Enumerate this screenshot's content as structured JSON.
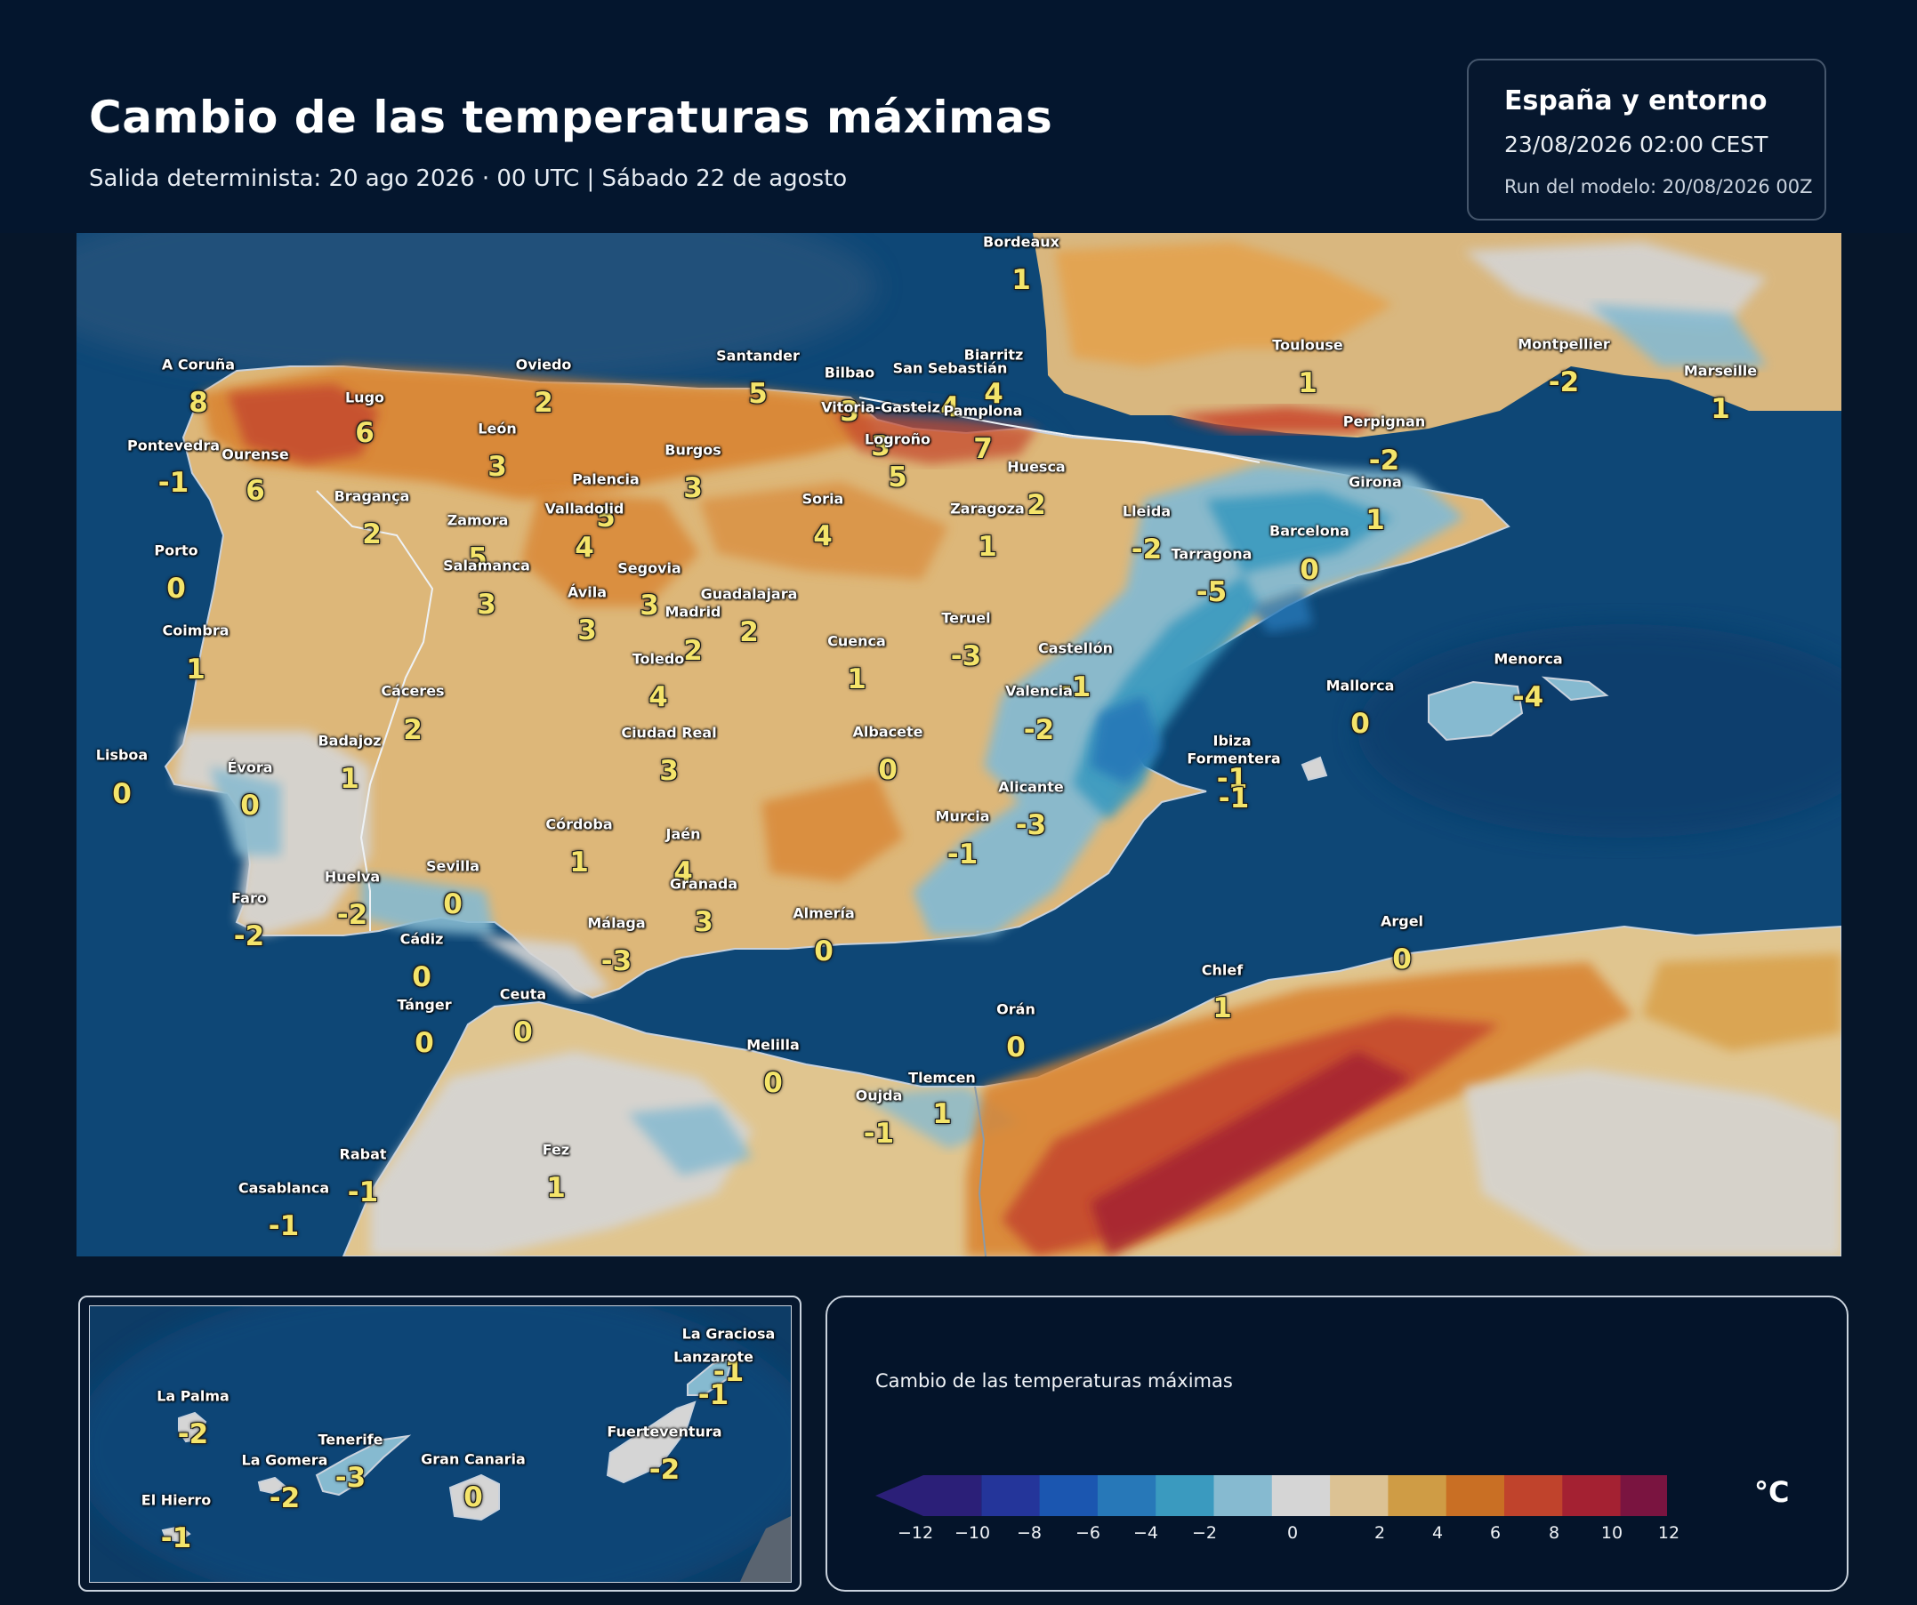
{
  "header": {
    "title": "Cambio de las temperaturas máximas",
    "subtitle": "Salida determinista: 20 ago 2026 · 00 UTC  |  Sábado 22 de agosto"
  },
  "info": {
    "region": "España y entorno",
    "datetime": "23/08/2026  02:00 CEST",
    "run": "Run del modelo: 20/08/2026 00Z"
  },
  "legend": {
    "title": "Cambio de las temperaturas máximas",
    "unit": "°C",
    "ticks": [
      "−12",
      "−10",
      "−8",
      "−6",
      "−4",
      "−2",
      "0",
      "2",
      "4",
      "6",
      "8",
      "10",
      "12"
    ],
    "colors": [
      "#2b1f78",
      "#24359a",
      "#1b56b0",
      "#2778b8",
      "#3a9abf",
      "#86bad0",
      "#d5d5d5",
      "#dcc294",
      "#cf9c45",
      "#c96f24",
      "#c0432c",
      "#a42132",
      "#7a1440"
    ]
  },
  "map": {
    "sea_color": "#0e4776",
    "cities": [
      {
        "name": "Bordeaux",
        "value": "1"
      },
      {
        "name": "A Coruña",
        "value": "8"
      },
      {
        "name": "Lugo",
        "value": "6"
      },
      {
        "name": "Oviedo",
        "value": "2"
      },
      {
        "name": "Santander",
        "value": "5"
      },
      {
        "name": "Bilbao",
        "value": "3"
      },
      {
        "name": "Biarritz",
        "value": "4"
      },
      {
        "name": "San Sebastián",
        "value": "4"
      },
      {
        "name": "Vitoria-Gasteiz",
        "value": "3"
      },
      {
        "name": "Pamplona",
        "value": "7"
      },
      {
        "name": "Logroño",
        "value": "5"
      },
      {
        "name": "Toulouse",
        "value": "1"
      },
      {
        "name": "Montpellier",
        "value": "-2"
      },
      {
        "name": "Marseille",
        "value": "1"
      },
      {
        "name": "Pontevedra",
        "value": "-1"
      },
      {
        "name": "Ourense",
        "value": "6"
      },
      {
        "name": "León",
        "value": "3"
      },
      {
        "name": "Burgos",
        "value": "3"
      },
      {
        "name": "Palencia",
        "value": "5"
      },
      {
        "name": "Soria",
        "value": "4"
      },
      {
        "name": "Huesca",
        "value": "2"
      },
      {
        "name": "Perpignan",
        "value": "-2"
      },
      {
        "name": "Girona",
        "value": "1"
      },
      {
        "name": "Bragança",
        "value": "2"
      },
      {
        "name": "Valladolid",
        "value": "4"
      },
      {
        "name": "Zaragoza",
        "value": "1"
      },
      {
        "name": "Lleida",
        "value": "-2"
      },
      {
        "name": "Barcelona",
        "value": "0"
      },
      {
        "name": "Zamora",
        "value": "5"
      },
      {
        "name": "Tarragona",
        "value": "-5"
      },
      {
        "name": "Porto",
        "value": "0"
      },
      {
        "name": "Salamanca",
        "value": "3"
      },
      {
        "name": "Segovia",
        "value": "3"
      },
      {
        "name": "Ávila",
        "value": "3"
      },
      {
        "name": "Guadalajara",
        "value": "2"
      },
      {
        "name": "Madrid",
        "value": "2"
      },
      {
        "name": "Teruel",
        "value": "-3"
      },
      {
        "name": "Coimbra",
        "value": "1"
      },
      {
        "name": "Cuenca",
        "value": "1"
      },
      {
        "name": "Castellón",
        "value": "-1"
      },
      {
        "name": "Toledo",
        "value": "4"
      },
      {
        "name": "Valencia",
        "value": "-2"
      },
      {
        "name": "Cáceres",
        "value": "2"
      },
      {
        "name": "Menorca",
        "value": "-4"
      },
      {
        "name": "Mallorca",
        "value": "0"
      },
      {
        "name": "Badajoz",
        "value": "1"
      },
      {
        "name": "Ciudad Real",
        "value": "3"
      },
      {
        "name": "Albacete",
        "value": "0"
      },
      {
        "name": "Ibiza",
        "value": "-1"
      },
      {
        "name": "Formentera",
        "value": "-1"
      },
      {
        "name": "Lisboa",
        "value": "0"
      },
      {
        "name": "Évora",
        "value": "0"
      },
      {
        "name": "Alicante",
        "value": "-3"
      },
      {
        "name": "Murcia",
        "value": "-1"
      },
      {
        "name": "Córdoba",
        "value": "1"
      },
      {
        "name": "Jaén",
        "value": "4"
      },
      {
        "name": "Huelva",
        "value": "-2"
      },
      {
        "name": "Sevilla",
        "value": "0"
      },
      {
        "name": "Granada",
        "value": "3"
      },
      {
        "name": "Faro",
        "value": "-2"
      },
      {
        "name": "Almería",
        "value": "0"
      },
      {
        "name": "Málaga",
        "value": "-3"
      },
      {
        "name": "Argel",
        "value": "0"
      },
      {
        "name": "Cádiz",
        "value": "0"
      },
      {
        "name": "Chlef",
        "value": "1"
      },
      {
        "name": "Tánger",
        "value": "0"
      },
      {
        "name": "Ceuta",
        "value": "0"
      },
      {
        "name": "Orán",
        "value": "0"
      },
      {
        "name": "Melilla",
        "value": "0"
      },
      {
        "name": "Tlemcen",
        "value": "1"
      },
      {
        "name": "Oujda",
        "value": "-1"
      },
      {
        "name": "Fez",
        "value": "1"
      },
      {
        "name": "Rabat",
        "value": "-1"
      },
      {
        "name": "Casablanca",
        "value": "-1"
      }
    ]
  },
  "inset": {
    "cities": [
      {
        "name": "La Graciosa",
        "value": "-1"
      },
      {
        "name": "Lanzarote",
        "value": "-1"
      },
      {
        "name": "La Palma",
        "value": "-2"
      },
      {
        "name": "Tenerife",
        "value": "-3"
      },
      {
        "name": "Fuerteventura",
        "value": "-2"
      },
      {
        "name": "La Gomera",
        "value": "-2"
      },
      {
        "name": "Gran Canaria",
        "value": "0"
      },
      {
        "name": "El Hierro",
        "value": "-1"
      }
    ]
  }
}
